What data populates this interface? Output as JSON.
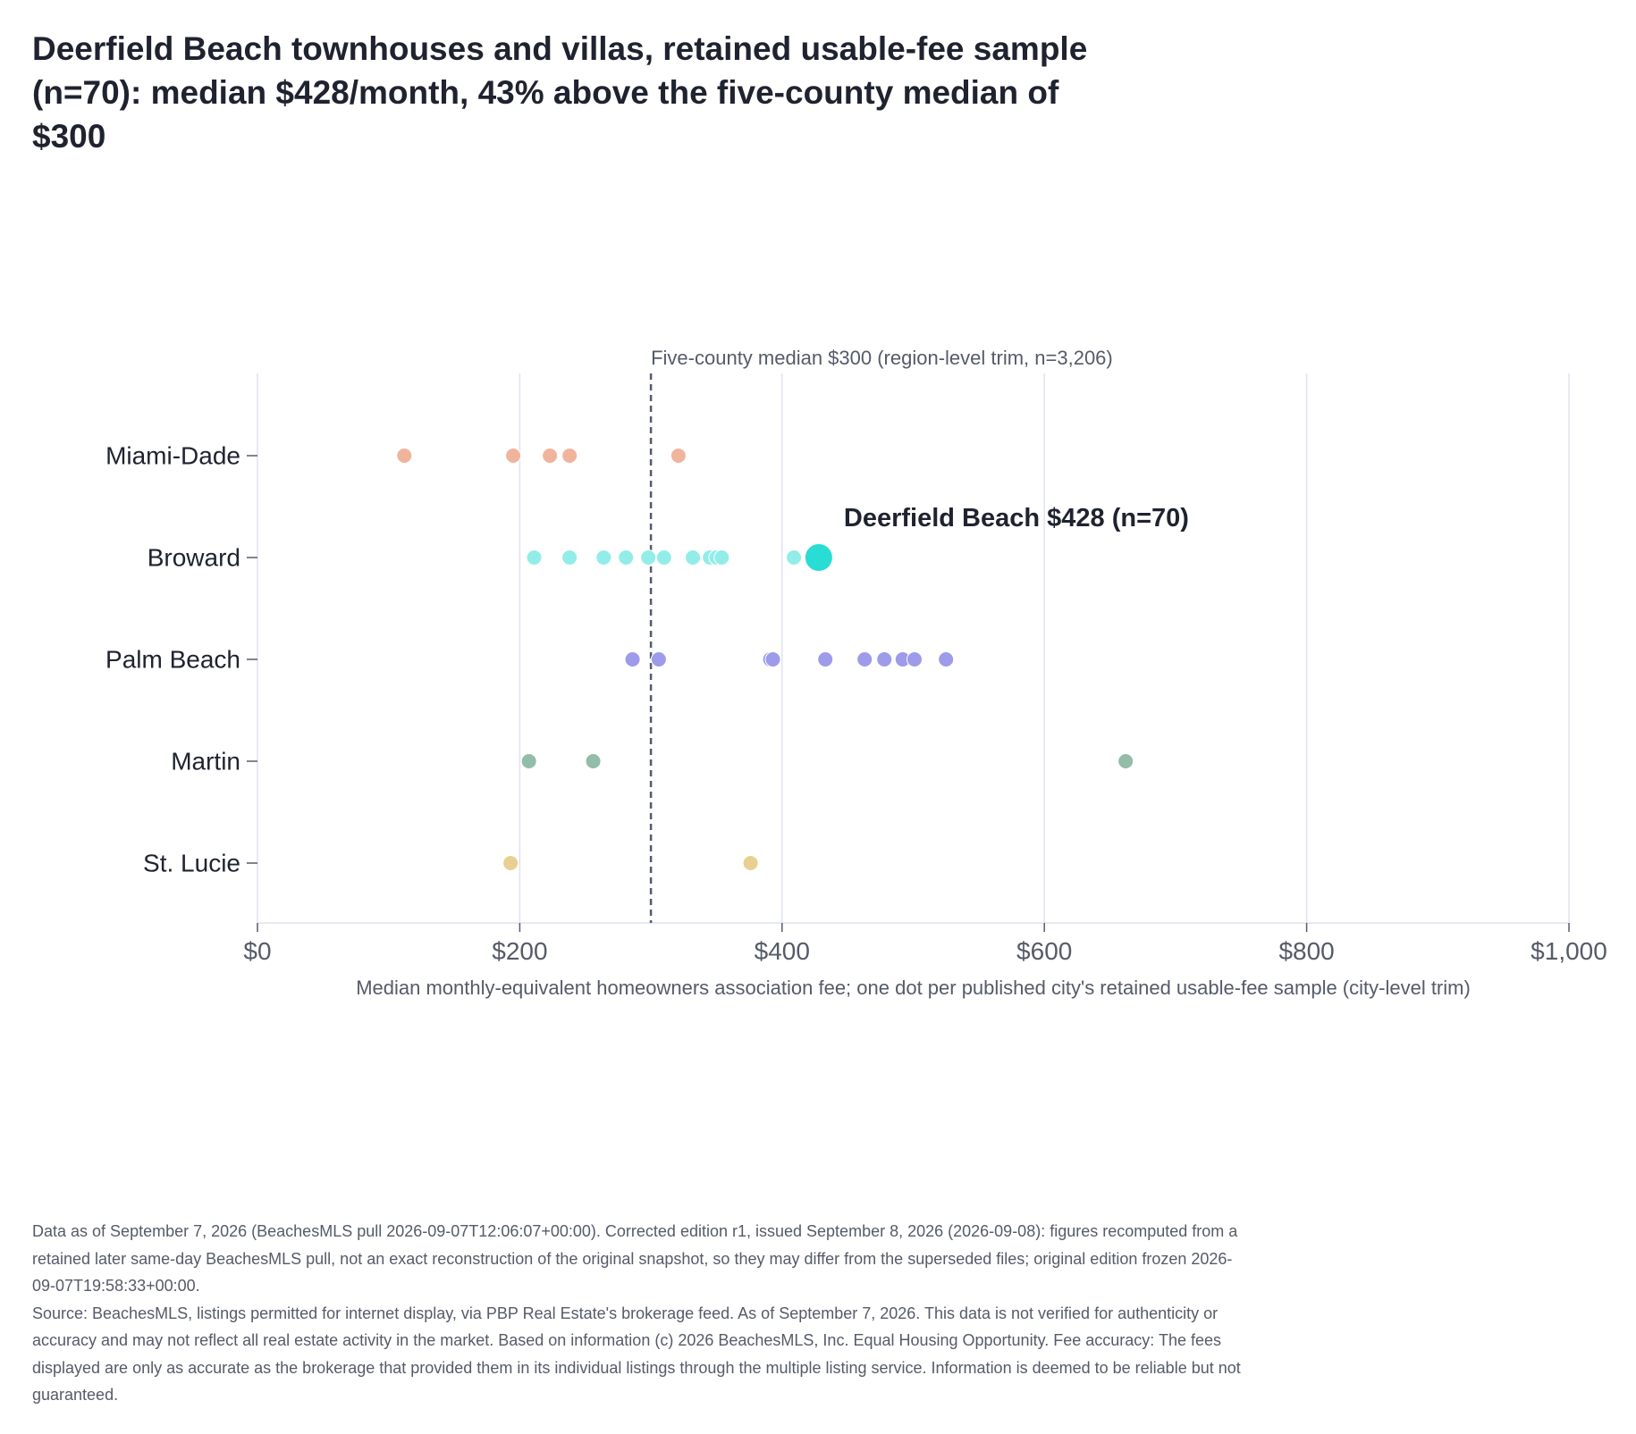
{
  "chart_data": {
    "type": "scatter",
    "title": "Deerfield Beach townhouses and villas, retained usable-fee sample (n=70): median $428/month, 43% above the five-county median of $300",
    "xlabel": "Median monthly-equivalent homeowners association fee; one dot per published city's retained usable-fee sample (city-level trim)",
    "ylabel": "",
    "xlim": [
      0,
      1000
    ],
    "x_ticks": [
      0,
      200,
      400,
      600,
      800,
      1000
    ],
    "x_tick_labels": [
      "$0",
      "$200",
      "$400",
      "$600",
      "$800",
      "$1,000"
    ],
    "categories": [
      "Miami-Dade",
      "Broward",
      "Palm Beach",
      "Martin",
      "St. Lucie"
    ],
    "grid": "vertical",
    "series": [
      {
        "name": "Miami-Dade",
        "color": "#f0b49c",
        "values": [
          112,
          195,
          223,
          238,
          321
        ]
      },
      {
        "name": "Broward",
        "color": "#92ede9",
        "values": [
          211,
          238,
          264,
          281,
          298,
          310,
          332,
          345,
          350,
          354,
          409
        ]
      },
      {
        "name": "Palm Beach",
        "color": "#9d9bea",
        "values": [
          286,
          306,
          391,
          393,
          433,
          463,
          478,
          492,
          501,
          525
        ]
      },
      {
        "name": "Martin",
        "color": "#93bca9",
        "values": [
          207,
          256,
          662
        ]
      },
      {
        "name": "St. Lucie",
        "color": "#eacf93",
        "values": [
          193,
          376
        ]
      }
    ],
    "highlight": {
      "category": "Broward",
      "value": 428,
      "color": "#29ddd4",
      "label": "Deerfield Beach $428 (n=70)"
    },
    "reference_line": {
      "value": 300,
      "color": "#555b6e",
      "label": "Five-county median $300 (region-level trim, n=3,206)"
    }
  },
  "notes": {
    "data_note": "Data as of September 7, 2026 (BeachesMLS pull 2026-09-07T12:06:07+00:00). Corrected edition r1, issued September 8, 2026 (2026-09-08): figures recomputed from a retained later same-day BeachesMLS pull, not an exact reconstruction of the original snapshot, so they may differ from the superseded files; original edition frozen 2026-09-07T19:58:33+00:00.",
    "source_note": "Source: BeachesMLS, listings permitted for internet display, via PBP Real Estate's brokerage feed. As of September 7, 2026. This data is not verified for authenticity or accuracy and may not reflect all real estate activity in the market. Based on information (c) 2026 BeachesMLS, Inc. Equal Housing Opportunity. Fee accuracy: The fees displayed are only as accurate as the brokerage that provided them in its individual listings through the multiple listing service. Information is deemed to be reliable but not guaranteed."
  }
}
